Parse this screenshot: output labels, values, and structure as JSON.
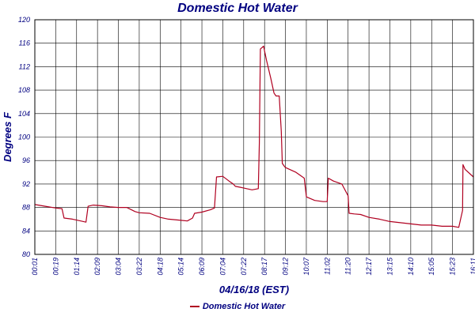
{
  "chart_data": {
    "type": "line",
    "title": "Domestic Hot Water",
    "xlabel": "04/16/18 (EST)",
    "ylabel": "Degrees F",
    "ylim": [
      80,
      120
    ],
    "yticks": [
      80,
      84,
      88,
      92,
      96,
      100,
      104,
      108,
      112,
      116,
      120
    ],
    "xtick_labels": [
      "00:01",
      "00:19",
      "01:14",
      "02:09",
      "03:04",
      "03:22",
      "04:18",
      "05:14",
      "06:09",
      "07:04",
      "07:22",
      "08:17",
      "09:12",
      "10:07",
      "11:02",
      "11:20",
      "12:17",
      "13:15",
      "14:10",
      "15:05",
      "15:23",
      "16:11"
    ],
    "grid": true,
    "legend_position": "bottom",
    "series": [
      {
        "name": "Domestic Hot Water",
        "color": "#b00020",
        "x_index": [
          0,
          0.5,
          1,
          1.3,
          1.4,
          1.8,
          2.2,
          2.45,
          2.55,
          2.8,
          3.2,
          3.6,
          4,
          4.4,
          4.8,
          5,
          5.5,
          6,
          6.4,
          7,
          7.3,
          7.55,
          7.65,
          8,
          8.4,
          8.6,
          8.7,
          9,
          9.3,
          9.5,
          9.6,
          9.9,
          10.4,
          10.7,
          10.75,
          10.8,
          10.95,
          11.1,
          11.3,
          11.45,
          11.55,
          11.7,
          11.8,
          11.85,
          11.95,
          12,
          12.5,
          12.9,
          13,
          13.4,
          13.8,
          14,
          14.05,
          14.3,
          14.7,
          15,
          15.05,
          15.3,
          15.6,
          16,
          16.5,
          17,
          17.5,
          18,
          18.5,
          19,
          19.5,
          20,
          20.3,
          20.48,
          20.5,
          20.6,
          21
        ],
        "values": [
          88.5,
          88.2,
          87.9,
          87.8,
          86.2,
          86,
          85.7,
          85.5,
          88.2,
          88.4,
          88.3,
          88.1,
          88,
          88,
          87.3,
          87.1,
          87,
          86.3,
          86,
          85.8,
          85.7,
          86.2,
          87,
          87.2,
          87.6,
          87.9,
          93.2,
          93.3,
          92.5,
          92,
          91.6,
          91.4,
          91,
          91.2,
          99,
          115,
          115.5,
          113,
          110,
          107.5,
          107,
          107,
          101,
          95.5,
          95,
          94.8,
          94,
          93,
          89.8,
          89.2,
          89,
          89,
          93,
          92.5,
          92,
          90,
          87,
          86.9,
          86.8,
          86.3,
          86,
          85.6,
          85.4,
          85.2,
          85,
          85,
          84.8,
          84.8,
          84.6,
          87.5,
          95.3,
          94.5,
          93.2
        ]
      }
    ]
  },
  "legend": {
    "label": "Domestic Hot Water"
  }
}
